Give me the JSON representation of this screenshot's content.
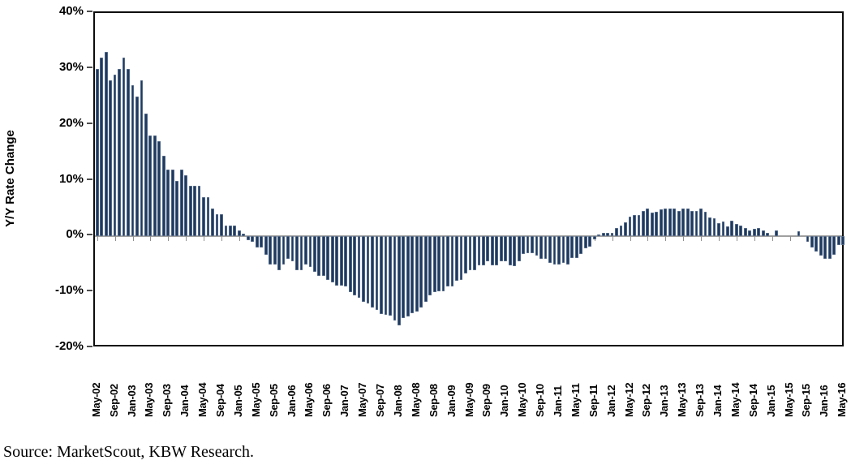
{
  "source_note": "Source: MarketScout, KBW Research.",
  "chart_data": {
    "type": "bar",
    "title": "",
    "xlabel": "",
    "ylabel": "Y/Y Rate Change",
    "ylim": [
      -20,
      40
    ],
    "grid": "off",
    "legend": "none",
    "bar_color": "#1f3a5f",
    "axis_frame_color": "#0d0d0d",
    "zero_line_color": "#a0a0a0",
    "y_ticks_pct": [
      40,
      30,
      20,
      10,
      0,
      -10,
      -20
    ],
    "y_tick_labels": [
      "40%",
      "30%",
      "20%",
      "10%",
      "0%",
      "-10%",
      "-20%"
    ],
    "x_tick_every": 4,
    "x_tick_labels_visible": [
      "May-02",
      "Sep-02",
      "Jan-03",
      "May-03",
      "Sep-03",
      "Jan-04",
      "May-04",
      "Sep-04",
      "Jan-05",
      "May-05",
      "Sep-05",
      "Jan-06",
      "May-06",
      "Sep-06",
      "Jan-07",
      "May-07",
      "Sep-07",
      "Jan-08",
      "May-08",
      "Sep-08",
      "Jan-09",
      "May-09",
      "Sep-09",
      "Jan-10",
      "May-10",
      "Sep-10",
      "Jan-11",
      "May-11",
      "Sep-11",
      "Jan-12",
      "May-12",
      "Sep-12",
      "Jan-13",
      "May-13",
      "Sep-13",
      "Jan-14",
      "May-14",
      "Sep-14",
      "Jan-15",
      "May-15",
      "Sep-15",
      "Jan-16",
      "May-16"
    ],
    "categories": [
      "May-02",
      "Jun-02",
      "Jul-02",
      "Aug-02",
      "Sep-02",
      "Oct-02",
      "Nov-02",
      "Dec-02",
      "Jan-03",
      "Feb-03",
      "Mar-03",
      "Apr-03",
      "May-03",
      "Jun-03",
      "Jul-03",
      "Aug-03",
      "Sep-03",
      "Oct-03",
      "Nov-03",
      "Dec-03",
      "Jan-04",
      "Feb-04",
      "Mar-04",
      "Apr-04",
      "May-04",
      "Jun-04",
      "Jul-04",
      "Aug-04",
      "Sep-04",
      "Oct-04",
      "Nov-04",
      "Dec-04",
      "Jan-05",
      "Feb-05",
      "Mar-05",
      "Apr-05",
      "May-05",
      "Jun-05",
      "Jul-05",
      "Aug-05",
      "Sep-05",
      "Oct-05",
      "Nov-05",
      "Dec-05",
      "Jan-06",
      "Feb-06",
      "Mar-06",
      "Apr-06",
      "May-06",
      "Jun-06",
      "Jul-06",
      "Aug-06",
      "Sep-06",
      "Oct-06",
      "Nov-06",
      "Dec-06",
      "Jan-07",
      "Feb-07",
      "Mar-07",
      "Apr-07",
      "May-07",
      "Jun-07",
      "Jul-07",
      "Aug-07",
      "Sep-07",
      "Oct-07",
      "Nov-07",
      "Dec-07",
      "Jan-08",
      "Feb-08",
      "Mar-08",
      "Apr-08",
      "May-08",
      "Jun-08",
      "Jul-08",
      "Aug-08",
      "Sep-08",
      "Oct-08",
      "Nov-08",
      "Dec-08",
      "Jan-09",
      "Feb-09",
      "Mar-09",
      "Apr-09",
      "May-09",
      "Jun-09",
      "Jul-09",
      "Aug-09",
      "Sep-09",
      "Oct-09",
      "Nov-09",
      "Dec-09",
      "Jan-10",
      "Feb-10",
      "Mar-10",
      "Apr-10",
      "May-10",
      "Jun-10",
      "Jul-10",
      "Aug-10",
      "Sep-10",
      "Oct-10",
      "Nov-10",
      "Dec-10",
      "Jan-11",
      "Feb-11",
      "Mar-11",
      "Apr-11",
      "May-11",
      "Jun-11",
      "Jul-11",
      "Aug-11",
      "Sep-11",
      "Oct-11",
      "Nov-11",
      "Dec-11",
      "Jan-12",
      "Feb-12",
      "Mar-12",
      "Apr-12",
      "May-12",
      "Jun-12",
      "Jul-12",
      "Aug-12",
      "Sep-12",
      "Oct-12",
      "Nov-12",
      "Dec-12",
      "Jan-13",
      "Feb-13",
      "Mar-13",
      "Apr-13",
      "May-13",
      "Jun-13",
      "Jul-13",
      "Aug-13",
      "Sep-13",
      "Oct-13",
      "Nov-13",
      "Dec-13",
      "Jan-14",
      "Feb-14",
      "Mar-14",
      "Apr-14",
      "May-14",
      "Jun-14",
      "Jul-14",
      "Aug-14",
      "Sep-14",
      "Oct-14",
      "Nov-14",
      "Dec-14",
      "Jan-15",
      "Feb-15",
      "Mar-15",
      "Apr-15",
      "May-15",
      "Jun-15",
      "Jul-15",
      "Aug-15",
      "Sep-15",
      "Oct-15",
      "Nov-15",
      "Dec-15",
      "Jan-16",
      "Feb-16",
      "Mar-16",
      "Apr-16",
      "May-16"
    ],
    "values": [
      30,
      32,
      33,
      28,
      29,
      30,
      32,
      30,
      27,
      25,
      28,
      22,
      18,
      18,
      17,
      14.5,
      12,
      12,
      10,
      12,
      11,
      9,
      9,
      9,
      7,
      7,
      5,
      4,
      4,
      2,
      2,
      2,
      1,
      0.5,
      -0.7,
      -1,
      -2,
      -2,
      -3.3,
      -5,
      -5,
      -6,
      -5,
      -4,
      -4.5,
      -6,
      -6,
      -5,
      -5.5,
      -6.3,
      -7,
      -7,
      -7.8,
      -8.3,
      -8.8,
      -8.8,
      -9,
      -10,
      -10.5,
      -11,
      -11.7,
      -12,
      -12.7,
      -13.2,
      -13.9,
      -14.1,
      -14.2,
      -15.1,
      -15.9,
      -14.6,
      -14.3,
      -13.7,
      -13.5,
      -12.7,
      -11.7,
      -10.5,
      -10,
      -9.8,
      -9.8,
      -9,
      -9,
      -8,
      -7.8,
      -6.6,
      -6.1,
      -6.1,
      -5.2,
      -5.2,
      -4.4,
      -5.2,
      -5.2,
      -4.4,
      -4.4,
      -5.2,
      -5.4,
      -4.5,
      -3.2,
      -3,
      -3,
      -3.5,
      -4,
      -4,
      -4.8,
      -5,
      -5,
      -4.8,
      -5,
      -3.9,
      -3.9,
      -3.1,
      -2.2,
      -1.8,
      -0.5,
      0.3,
      0.7,
      0.7,
      0.7,
      1.5,
      2,
      2.5,
      3.5,
      3.8,
      3.8,
      4.5,
      5,
      4.2,
      4.4,
      4.8,
      5,
      5,
      5,
      4.5,
      5,
      5,
      4.5,
      4.5,
      5,
      4.4,
      3.4,
      3.2,
      2.4,
      2.6,
      1.8,
      2.8,
      2.2,
      1.9,
      1.5,
      1.1,
      1.4,
      1.5,
      1,
      0.6,
      0,
      1,
      0,
      0,
      0,
      0,
      0.9,
      0,
      -1,
      -2,
      -2.7,
      -3.4,
      -4,
      -4,
      -3.3,
      -1.6,
      -1.6
    ]
  }
}
